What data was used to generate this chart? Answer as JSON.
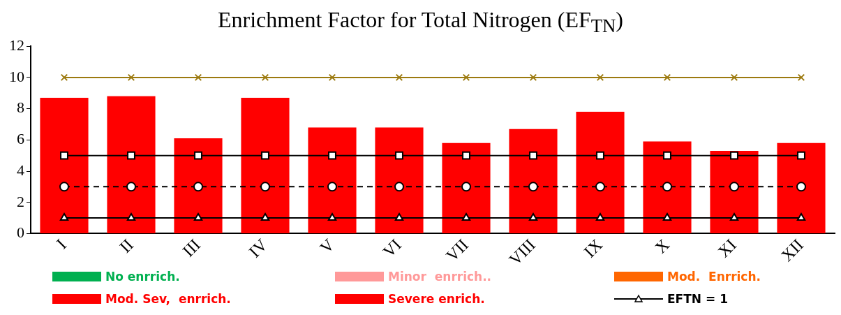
{
  "chart_data": {
    "type": "bar",
    "title": "Enrichment Factor for Total Nitrogen (EF$_{TN}$)",
    "categories": [
      "I",
      "II",
      "III",
      "IV",
      "V",
      "VI",
      "VII",
      "VIII",
      "IX",
      "X",
      "XI",
      "XII"
    ],
    "series": [
      {
        "name": "No enrrich.",
        "color": "#00b050",
        "values": [
          null,
          null,
          null,
          null,
          null,
          null,
          null,
          null,
          null,
          null,
          null,
          null
        ]
      },
      {
        "name": "Minor  enrrich..",
        "color": "#ff9999",
        "values": [
          null,
          null,
          null,
          null,
          null,
          null,
          null,
          null,
          null,
          null,
          null,
          null
        ]
      },
      {
        "name": "Mod.  Enrrich.",
        "color": "#ff6600",
        "values": [
          null,
          null,
          null,
          null,
          null,
          null,
          null,
          null,
          null,
          null,
          null,
          null
        ]
      },
      {
        "name": "Mod. Sev,  enrrich.",
        "color": "#ff0000",
        "values": [
          8.7,
          8.8,
          6.1,
          8.7,
          6.8,
          6.8,
          5.8,
          6.7,
          7.8,
          5.9,
          5.3,
          5.8
        ]
      },
      {
        "name": "Severe enrich.",
        "color": "#ff0000",
        "values": [
          null,
          null,
          null,
          null,
          null,
          null,
          null,
          null,
          null,
          null,
          null,
          null
        ]
      },
      {
        "name": "EFTN = 1",
        "type": "line",
        "color": "#000000",
        "marker": "triangle",
        "line_style": "solid",
        "values": [
          1,
          1,
          1,
          1,
          1,
          1,
          1,
          1,
          1,
          1,
          1,
          1
        ]
      },
      {
        "type": "line",
        "color": "#000000",
        "marker": "circle",
        "line_style": "dashed",
        "values": [
          3,
          3,
          3,
          3,
          3,
          3,
          3,
          3,
          3,
          3,
          3,
          3
        ]
      },
      {
        "type": "line",
        "color": "#000000",
        "marker": "square",
        "line_style": "solid",
        "values": [
          5,
          5,
          5,
          5,
          5,
          5,
          5,
          5,
          5,
          5,
          5,
          5
        ]
      },
      {
        "type": "line",
        "color": "#9c7a0f",
        "marker": "cross",
        "line_style": "solid",
        "values": [
          10,
          10,
          10,
          10,
          10,
          10,
          10,
          10,
          10,
          10,
          10,
          10
        ]
      }
    ],
    "ylim": [
      0,
      12
    ],
    "yticks": [
      0,
      2,
      4,
      6,
      8,
      10,
      12
    ],
    "grid": false,
    "legend": "bottom"
  }
}
